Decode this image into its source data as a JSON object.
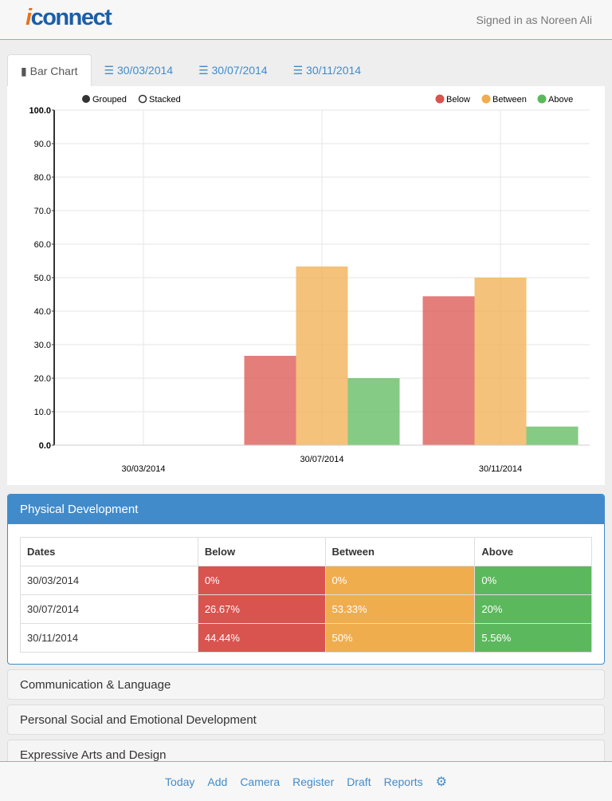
{
  "header": {
    "logo": "iconnect",
    "signed_in": "Signed in as Noreen Ali"
  },
  "tabs": [
    {
      "label": "Bar Chart",
      "icon": "bar-chart-icon"
    },
    {
      "label": "30/03/2014",
      "icon": "list-icon"
    },
    {
      "label": "30/07/2014",
      "icon": "list-icon"
    },
    {
      "label": "30/11/2014",
      "icon": "list-icon"
    }
  ],
  "chart_controls": {
    "grouped": "Grouped",
    "stacked": "Stacked",
    "selected": "Grouped"
  },
  "chart_data": {
    "type": "bar",
    "categories": [
      "30/03/2014",
      "30/07/2014",
      "30/11/2014"
    ],
    "series": [
      {
        "name": "Below",
        "color": "#d9534f",
        "values": [
          0,
          26.67,
          44.44
        ]
      },
      {
        "name": "Between",
        "color": "#f0ad4e",
        "values": [
          0,
          53.33,
          50
        ]
      },
      {
        "name": "Above",
        "color": "#5cb85c",
        "values": [
          0,
          20,
          5.56
        ]
      }
    ],
    "ylim": [
      0,
      100
    ],
    "yticks": [
      "0.0",
      "10.0",
      "20.0",
      "30.0",
      "40.0",
      "50.0",
      "60.0",
      "70.0",
      "80.0",
      "90.0",
      "100.0"
    ],
    "grid": true,
    "legend": "top-right"
  },
  "panel": {
    "title": "Physical Development",
    "headers": [
      "Dates",
      "Below",
      "Between",
      "Above"
    ],
    "rows": [
      [
        "30/03/2014",
        "0%",
        "0%",
        "0%"
      ],
      [
        "30/07/2014",
        "26.67%",
        "53.33%",
        "20%"
      ],
      [
        "30/11/2014",
        "44.44%",
        "50%",
        "5.56%"
      ]
    ]
  },
  "accordions": [
    "Communication & Language",
    "Personal Social and Emotional Development",
    "Expressive Arts and Design"
  ],
  "footer": {
    "items": [
      "Today",
      "Add",
      "Camera",
      "Register",
      "Draft",
      "Reports"
    ],
    "settings_icon": "gear-icon"
  }
}
